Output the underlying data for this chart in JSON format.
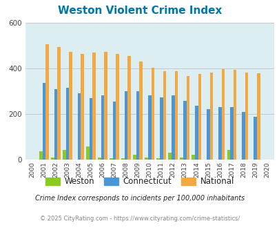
{
  "title": "Weston Violent Crime Index",
  "years": [
    2000,
    2001,
    2002,
    2003,
    2004,
    2005,
    2006,
    2007,
    2008,
    2009,
    2010,
    2011,
    2012,
    2013,
    2014,
    2015,
    2016,
    2017,
    2018,
    2019,
    2020
  ],
  "weston": [
    0,
    35,
    8,
    42,
    0,
    58,
    8,
    5,
    5,
    20,
    8,
    5,
    30,
    8,
    20,
    0,
    0,
    42,
    0,
    0,
    0
  ],
  "connecticut": [
    0,
    335,
    310,
    315,
    290,
    270,
    283,
    255,
    300,
    300,
    283,
    272,
    283,
    258,
    235,
    220,
    230,
    230,
    208,
    188,
    0
  ],
  "national": [
    0,
    507,
    494,
    473,
    463,
    470,
    473,
    463,
    455,
    430,
    404,
    388,
    388,
    368,
    375,
    383,
    398,
    395,
    383,
    379,
    0
  ],
  "weston_color": "#8ac926",
  "connecticut_color": "#4c96d7",
  "national_color": "#f4a940",
  "bg_color": "#ddeef3",
  "title_color": "#0077aa",
  "ylim": [
    0,
    600
  ],
  "yticks": [
    0,
    200,
    400,
    600
  ],
  "subtitle": "Crime Index corresponds to incidents per 100,000 inhabitants",
  "footer": "© 2025 CityRating.com - https://www.cityrating.com/crime-statistics/",
  "subtitle_color": "#222222",
  "footer_color": "#888888"
}
